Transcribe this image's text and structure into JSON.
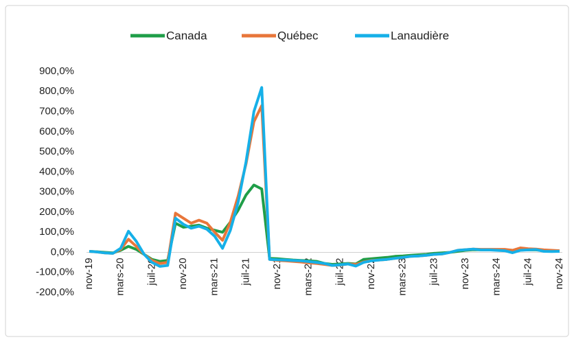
{
  "chart_data": {
    "type": "line",
    "categories": [
      "nov-19",
      null,
      null,
      null,
      "mars-20",
      null,
      null,
      null,
      "juil-20",
      null,
      null,
      null,
      "nov-20",
      null,
      null,
      null,
      "mars-21",
      null,
      null,
      null,
      "juil-21",
      null,
      null,
      null,
      "nov-21",
      null,
      null,
      null,
      "mars-22",
      null,
      null,
      null,
      "juil-22",
      null,
      null,
      null,
      "nov-22",
      null,
      null,
      null,
      "mars-23",
      null,
      null,
      null,
      "juil-23",
      null,
      null,
      null,
      "nov-23",
      null,
      null,
      null,
      "mars-24",
      null,
      null,
      null,
      "juil-24",
      null,
      null,
      null,
      "nov-24"
    ],
    "series": [
      {
        "name": "Canada",
        "color": "#1f9e48",
        "values": [
          5,
          3,
          0,
          -3,
          10,
          30,
          15,
          -10,
          -35,
          -45,
          -40,
          145,
          125,
          130,
          135,
          120,
          110,
          100,
          150,
          210,
          285,
          335,
          315,
          -30,
          -32,
          -35,
          -38,
          -40,
          -42,
          -45,
          -55,
          -60,
          -58,
          -55,
          -58,
          -35,
          -32,
          -28,
          -25,
          -20,
          -18,
          -15,
          -12,
          -10,
          -5,
          -3,
          0,
          5,
          10,
          13,
          12,
          12,
          12,
          12,
          10,
          12,
          12,
          12,
          8,
          6,
          5
        ]
      },
      {
        "name": "Québec",
        "color": "#e8763a",
        "values": [
          5,
          2,
          -3,
          -5,
          15,
          65,
          30,
          -10,
          -40,
          -55,
          -50,
          195,
          170,
          145,
          160,
          145,
          100,
          60,
          150,
          280,
          440,
          650,
          730,
          -35,
          -40,
          -42,
          -45,
          -48,
          -52,
          -55,
          -60,
          -65,
          -63,
          -58,
          -60,
          -48,
          -40,
          -38,
          -35,
          -30,
          -25,
          -20,
          -18,
          -15,
          -10,
          -8,
          0,
          10,
          13,
          16,
          15,
          15,
          15,
          15,
          10,
          22,
          18,
          16,
          12,
          10,
          8
        ]
      },
      {
        "name": "Lanaudière",
        "color": "#16b0e8",
        "values": [
          5,
          2,
          -3,
          -5,
          20,
          105,
          55,
          -10,
          -50,
          -70,
          -65,
          170,
          140,
          120,
          130,
          115,
          80,
          20,
          110,
          250,
          450,
          700,
          820,
          -35,
          -37,
          -38,
          -40,
          -42,
          -46,
          -50,
          -55,
          -65,
          -62,
          -58,
          -68,
          -50,
          -42,
          -38,
          -35,
          -30,
          -25,
          -20,
          -18,
          -15,
          -10,
          -8,
          0,
          10,
          13,
          16,
          12,
          12,
          10,
          8,
          -2,
          10,
          12,
          14,
          5,
          4,
          5
        ]
      }
    ],
    "ylim": [
      -200,
      900
    ],
    "yticks": [
      {
        "value": -200,
        "label": "-200,0%"
      },
      {
        "value": -100,
        "label": "-100,0%"
      },
      {
        "value": 0,
        "label": "0,0%"
      },
      {
        "value": 100,
        "label": "100,0%"
      },
      {
        "value": 200,
        "label": "200,0%"
      },
      {
        "value": 300,
        "label": "300,0%"
      },
      {
        "value": 400,
        "label": "400,0%"
      },
      {
        "value": 500,
        "label": "500,0%"
      },
      {
        "value": 600,
        "label": "600,0%"
      },
      {
        "value": 700,
        "label": "700,0%"
      },
      {
        "value": 800,
        "label": "800,0%"
      },
      {
        "value": 900,
        "label": "900,0%"
      }
    ],
    "grid": false,
    "legend": "top"
  }
}
